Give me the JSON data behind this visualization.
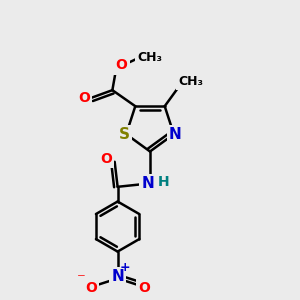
{
  "bg_color": "#ebebeb",
  "bond_color": "#000000",
  "line_width": 1.8,
  "atom_colors": {
    "S": "#808000",
    "N": "#0000cd",
    "O": "#ff0000",
    "H": "#008080",
    "C": "#000000"
  },
  "font_size": 10,
  "fig_size": [
    3.0,
    3.0
  ],
  "dpi": 100
}
